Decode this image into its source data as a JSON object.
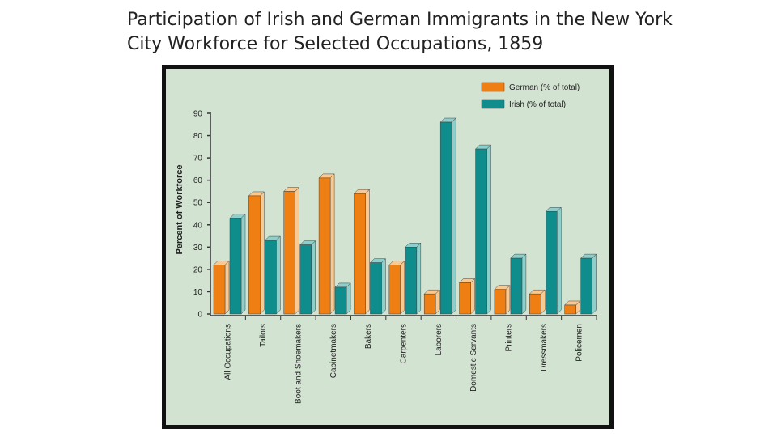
{
  "slide": {
    "title": "Participation of Irish and German Immigrants in the New York City Workforce for Selected Occupations, 1859"
  },
  "chart_data": {
    "type": "bar",
    "title": "Participation of Irish and German Immigrants in the New York City Workforce for Selected Occupations, 1859",
    "xlabel": "",
    "ylabel": "Percent of Workforce",
    "ylim": [
      0,
      90
    ],
    "yticks": [
      0,
      10,
      20,
      30,
      40,
      50,
      60,
      70,
      80,
      90
    ],
    "grid": false,
    "legend_position": "top-right",
    "categories": [
      "All Occupations",
      "Tailors",
      "Boot and Shoemakers",
      "Cabinetmakers",
      "Bakers",
      "Carpenters",
      "Laborers",
      "Domestic Servants",
      "Printers",
      "Dressmakers",
      "Policemen"
    ],
    "series": [
      {
        "name": "German (% of total)",
        "color": "#ef7f12",
        "side_color": "#f9c98f",
        "values": [
          22,
          53,
          55,
          61,
          54,
          22,
          9,
          14,
          11,
          9,
          4
        ]
      },
      {
        "name": "Irish (% of total)",
        "color": "#0f8c8c",
        "side_color": "#8ccfcb",
        "values": [
          43,
          33,
          31,
          12,
          23,
          30,
          86,
          74,
          25,
          46,
          25
        ]
      }
    ]
  }
}
